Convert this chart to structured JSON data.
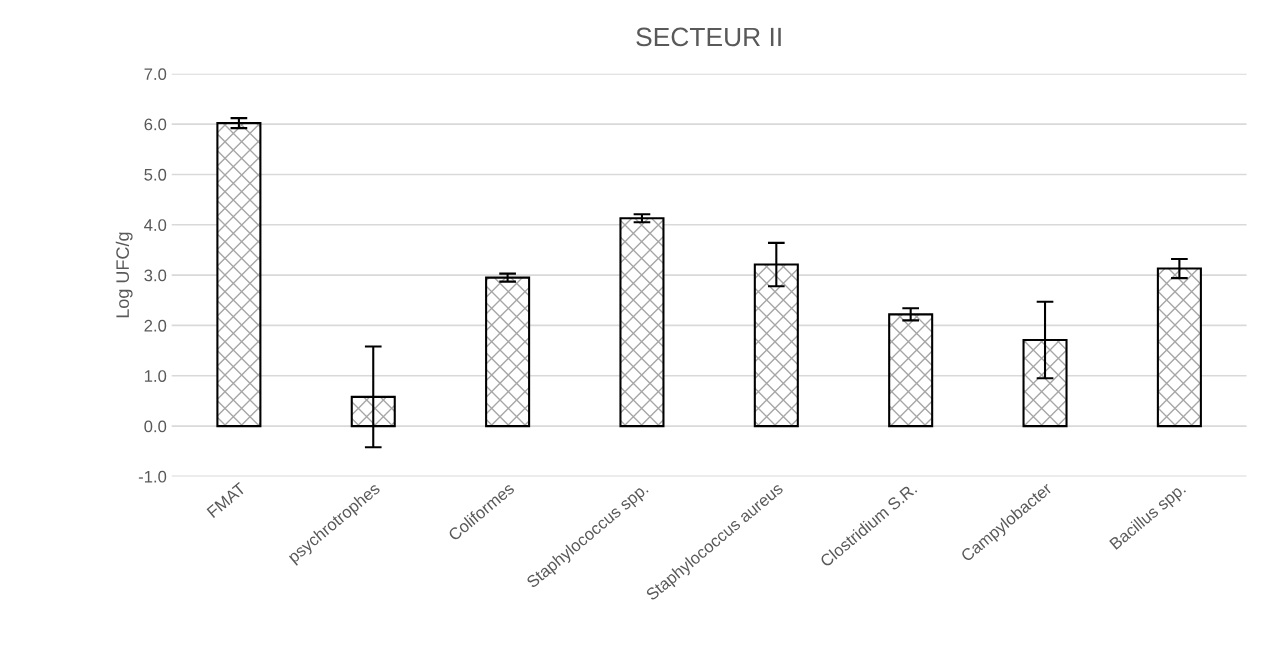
{
  "chart_data": {
    "type": "bar",
    "title": "SECTEUR II",
    "ylabel": "Log UFC/g",
    "categories": [
      "FMAT",
      "psychrotrophes",
      "Coliformes",
      "Staphylococcus spp.",
      "Staphylococcus aureus",
      "Clostridium S.R.",
      "Campylobacter",
      "Bacillus spp."
    ],
    "values": [
      6.02,
      0.58,
      2.95,
      4.13,
      3.21,
      2.22,
      1.71,
      3.13
    ],
    "errors": [
      0.1,
      1.0,
      0.08,
      0.08,
      0.43,
      0.12,
      0.76,
      0.19
    ],
    "color": "#000000",
    "ylim": [
      -1,
      7
    ],
    "yticks": [
      {
        "value": -1,
        "label": "-1.0"
      },
      {
        "value": 0,
        "label": "0.0"
      },
      {
        "value": 1,
        "label": "1.0"
      },
      {
        "value": 2,
        "label": "2.0"
      },
      {
        "value": 3,
        "label": "3.0"
      },
      {
        "value": 4,
        "label": "4.0"
      },
      {
        "value": 5,
        "label": "5.0"
      },
      {
        "value": 6,
        "label": "6.0"
      },
      {
        "value": 7,
        "label": "7.0"
      }
    ],
    "grid": "y"
  }
}
